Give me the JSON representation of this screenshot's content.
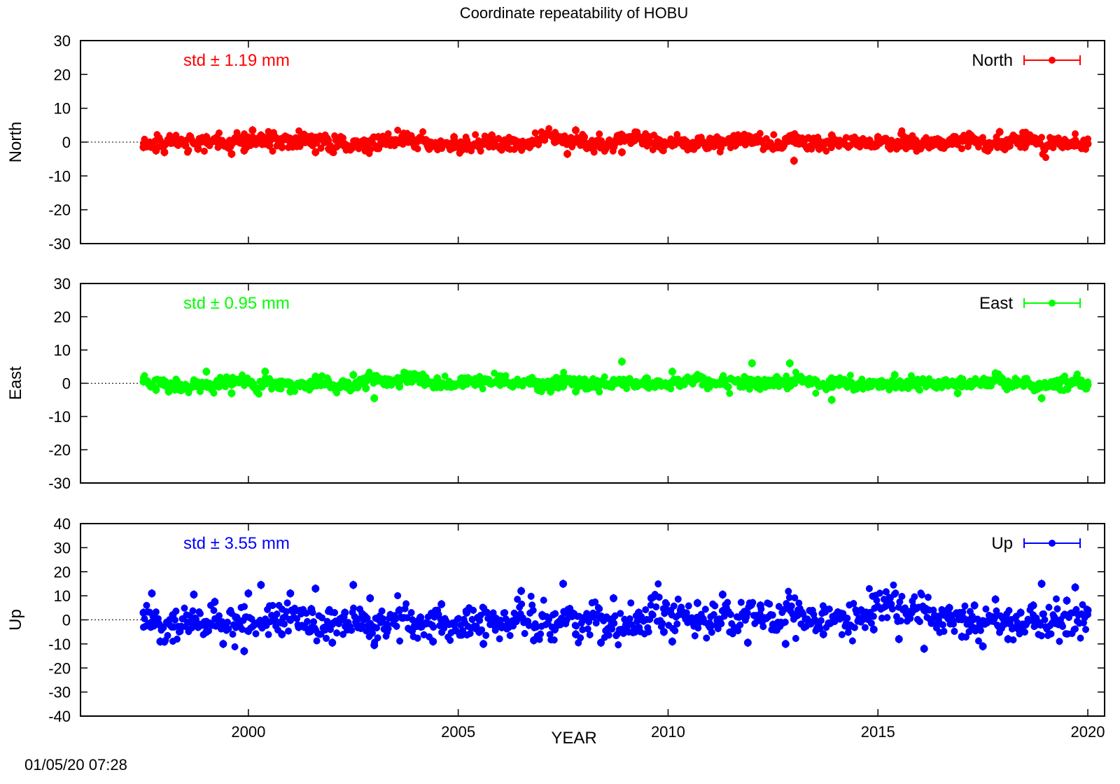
{
  "chart_data": [
    {
      "type": "scatter",
      "panel": "North",
      "title": "Coordinate repeatability of HOBU",
      "ylabel": "North",
      "xlabel": "",
      "ylim": [
        -30,
        30
      ],
      "yticks": [
        30,
        20,
        10,
        0,
        -10,
        -20,
        -30
      ],
      "xlim": [
        1996,
        2020.4
      ],
      "std_label": "std ± 1.19 mm",
      "legend": "North",
      "legend_position": "top-right",
      "color": "#ff0000",
      "zero_line": "dotted",
      "x_start": 1997.5,
      "x_end": 2020.0,
      "std": 1.19,
      "series": [
        {
          "name": "North",
          "points": [
            [
              1997.5,
              -1.5
            ],
            [
              1997.8,
              -2.5
            ],
            [
              1998.0,
              -3.0
            ],
            [
              1998.2,
              0.5
            ],
            [
              1998.5,
              -1.0
            ],
            [
              1998.8,
              -2.0
            ],
            [
              1999.0,
              1.5
            ],
            [
              1999.3,
              -1.0
            ],
            [
              1999.6,
              -3.5
            ],
            [
              1999.9,
              -2.5
            ],
            [
              2000.1,
              3.5
            ],
            [
              2000.3,
              2.0
            ],
            [
              2000.5,
              -1.0
            ],
            [
              2000.8,
              -1.5
            ],
            [
              2001.0,
              1.0
            ],
            [
              2001.3,
              0.0
            ],
            [
              2001.6,
              -3.0
            ],
            [
              2001.9,
              0.5
            ],
            [
              2002.2,
              1.5
            ],
            [
              2002.5,
              -1.0
            ],
            [
              2002.8,
              -0.5
            ],
            [
              2003.1,
              1.5
            ],
            [
              2003.4,
              0.0
            ],
            [
              2003.7,
              2.5
            ],
            [
              2004.0,
              0.5
            ],
            [
              2004.3,
              0.0
            ],
            [
              2004.6,
              -1.5
            ],
            [
              2004.9,
              1.5
            ],
            [
              2005.2,
              0.5
            ],
            [
              2005.5,
              -1.5
            ],
            [
              2005.8,
              2.0
            ],
            [
              2006.1,
              0.5
            ],
            [
              2006.4,
              -1.0
            ],
            [
              2006.7,
              -1.5
            ],
            [
              2007.0,
              1.5
            ],
            [
              2007.3,
              0.0
            ],
            [
              2007.6,
              -3.5
            ],
            [
              2007.8,
              3.5
            ],
            [
              2008.0,
              1.5
            ],
            [
              2008.3,
              -1.0
            ],
            [
              2008.6,
              0.5
            ],
            [
              2008.9,
              -3.0
            ],
            [
              2009.2,
              0.5
            ],
            [
              2009.5,
              -1.0
            ],
            [
              2009.8,
              0.5
            ],
            [
              2010.1,
              -1.0
            ],
            [
              2010.4,
              0.0
            ],
            [
              2010.7,
              -1.0
            ],
            [
              2011.0,
              1.0
            ],
            [
              2011.3,
              0.0
            ],
            [
              2011.6,
              -1.0
            ],
            [
              2011.9,
              1.0
            ],
            [
              2012.2,
              0.5
            ],
            [
              2012.5,
              -2.0
            ],
            [
              2012.9,
              1.5
            ],
            [
              2013.0,
              -5.5
            ],
            [
              2013.3,
              -1.5
            ],
            [
              2013.6,
              -2.0
            ],
            [
              2013.9,
              2.0
            ],
            [
              2014.2,
              -0.5
            ],
            [
              2014.5,
              -0.5
            ],
            [
              2014.8,
              0.5
            ],
            [
              2015.0,
              1.5
            ],
            [
              2015.3,
              0.0
            ],
            [
              2015.6,
              0.5
            ],
            [
              2015.9,
              0.5
            ],
            [
              2016.2,
              0.5
            ],
            [
              2016.5,
              -1.5
            ],
            [
              2016.8,
              1.5
            ],
            [
              2017.1,
              0.5
            ],
            [
              2017.4,
              0.0
            ],
            [
              2017.7,
              -0.5
            ],
            [
              2017.9,
              3.0
            ],
            [
              2018.2,
              0.5
            ],
            [
              2018.5,
              -1.5
            ],
            [
              2018.8,
              0.5
            ],
            [
              2019.1,
              -0.5
            ],
            [
              2019.4,
              -1.5
            ],
            [
              2019.7,
              0.5
            ],
            [
              2020.0,
              -0.5
            ]
          ]
        }
      ]
    },
    {
      "type": "scatter",
      "panel": "East",
      "ylabel": "East",
      "xlabel": "",
      "ylim": [
        -30,
        30
      ],
      "yticks": [
        30,
        20,
        10,
        0,
        -10,
        -20,
        -30
      ],
      "xlim": [
        1996,
        2020.4
      ],
      "std_label": "std ± 0.95 mm",
      "legend": "East",
      "legend_position": "top-right",
      "color": "#00ff00",
      "zero_line": "dotted",
      "x_start": 1997.5,
      "x_end": 2020.0,
      "std": 0.95,
      "series": [
        {
          "name": "East",
          "points": [
            [
              1997.5,
              0.5
            ],
            [
              1997.8,
              -2.0
            ],
            [
              1998.1,
              -2.5
            ],
            [
              1998.4,
              -0.5
            ],
            [
              1998.7,
              0.5
            ],
            [
              1999.0,
              3.5
            ],
            [
              1999.3,
              -1.0
            ],
            [
              1999.6,
              -3.0
            ],
            [
              1999.9,
              1.0
            ],
            [
              2000.2,
              -2.5
            ],
            [
              2000.4,
              3.5
            ],
            [
              2000.7,
              -0.5
            ],
            [
              2001.0,
              -2.5
            ],
            [
              2001.3,
              0.0
            ],
            [
              2001.6,
              2.0
            ],
            [
              2001.9,
              0.5
            ],
            [
              2002.2,
              -0.5
            ],
            [
              2002.5,
              2.5
            ],
            [
              2002.8,
              -1.5
            ],
            [
              2003.0,
              -4.5
            ],
            [
              2003.3,
              -0.5
            ],
            [
              2003.6,
              -1.0
            ],
            [
              2003.9,
              0.5
            ],
            [
              2004.2,
              -0.5
            ],
            [
              2004.5,
              1.5
            ],
            [
              2004.8,
              -1.0
            ],
            [
              2005.1,
              0.5
            ],
            [
              2005.4,
              -0.5
            ],
            [
              2005.7,
              1.0
            ],
            [
              2006.0,
              -0.5
            ],
            [
              2006.3,
              -1.0
            ],
            [
              2006.6,
              0.5
            ],
            [
              2006.9,
              -2.0
            ],
            [
              2007.2,
              -2.5
            ],
            [
              2007.5,
              -1.0
            ],
            [
              2007.8,
              -2.5
            ],
            [
              2008.1,
              -1.5
            ],
            [
              2008.4,
              0.5
            ],
            [
              2008.7,
              1.0
            ],
            [
              2008.9,
              6.5
            ],
            [
              2009.2,
              -1.0
            ],
            [
              2009.5,
              1.5
            ],
            [
              2009.8,
              0.5
            ],
            [
              2010.1,
              3.5
            ],
            [
              2010.4,
              1.0
            ],
            [
              2010.7,
              2.5
            ],
            [
              2011.0,
              0.0
            ],
            [
              2011.3,
              1.5
            ],
            [
              2011.6,
              0.5
            ],
            [
              2011.9,
              1.0
            ],
            [
              2012.0,
              6.0
            ],
            [
              2012.3,
              1.0
            ],
            [
              2012.6,
              0.5
            ],
            [
              2012.9,
              6.0
            ],
            [
              2013.2,
              0.5
            ],
            [
              2013.5,
              1.0
            ],
            [
              2013.9,
              -5.0
            ],
            [
              2014.2,
              1.0
            ],
            [
              2014.5,
              -0.5
            ],
            [
              2014.8,
              0.5
            ],
            [
              2015.1,
              -1.0
            ],
            [
              2015.4,
              2.5
            ],
            [
              2015.7,
              0.5
            ],
            [
              2016.0,
              0.0
            ],
            [
              2016.3,
              -0.5
            ],
            [
              2016.6,
              0.5
            ],
            [
              2016.9,
              -3.0
            ],
            [
              2017.2,
              0.5
            ],
            [
              2017.5,
              1.0
            ],
            [
              2017.8,
              3.0
            ],
            [
              2018.1,
              0.5
            ],
            [
              2018.4,
              0.0
            ],
            [
              2018.7,
              -1.0
            ],
            [
              2018.9,
              -4.5
            ],
            [
              2019.2,
              -0.5
            ],
            [
              2019.5,
              0.5
            ],
            [
              2019.8,
              0.0
            ],
            [
              2020.0,
              -0.5
            ]
          ]
        }
      ]
    },
    {
      "type": "scatter",
      "panel": "Up",
      "ylabel": "Up",
      "xlabel": "YEAR",
      "ylim": [
        -40,
        40
      ],
      "yticks": [
        40,
        30,
        20,
        10,
        0,
        -10,
        -20,
        -30,
        -40
      ],
      "xlim": [
        1996,
        2020.4
      ],
      "xticks": [
        "2000",
        "2005",
        "2010",
        "2015",
        "2020"
      ],
      "std_label": "std ± 3.55 mm",
      "legend": "Up",
      "legend_position": "top-right",
      "color": "#0000ff",
      "zero_line": "dotted",
      "x_start": 1997.5,
      "x_end": 2020.0,
      "std": 3.55,
      "series": [
        {
          "name": "Up",
          "points": [
            [
              1997.5,
              3.0
            ],
            [
              1997.7,
              11.0
            ],
            [
              1997.9,
              -9.0
            ],
            [
              1998.2,
              2.0
            ],
            [
              1998.4,
              -3.0
            ],
            [
              1998.7,
              10.5
            ],
            [
              1999.0,
              -5.0
            ],
            [
              1999.2,
              7.5
            ],
            [
              1999.4,
              -10.0
            ],
            [
              1999.7,
              1.0
            ],
            [
              1999.9,
              -13.0
            ],
            [
              2000.0,
              11.0
            ],
            [
              2000.3,
              14.5
            ],
            [
              2000.6,
              0.0
            ],
            [
              2000.8,
              -6.0
            ],
            [
              2001.0,
              11.0
            ],
            [
              2001.2,
              -3.0
            ],
            [
              2001.5,
              4.5
            ],
            [
              2001.6,
              13.0
            ],
            [
              2001.9,
              -2.0
            ],
            [
              2002.0,
              -9.5
            ],
            [
              2002.3,
              3.0
            ],
            [
              2002.5,
              14.5
            ],
            [
              2002.7,
              -2.5
            ],
            [
              2002.9,
              9.0
            ],
            [
              2003.0,
              -10.5
            ],
            [
              2003.3,
              -2.0
            ],
            [
              2003.6,
              4.0
            ],
            [
              2003.9,
              -4.5
            ],
            [
              2004.1,
              1.0
            ],
            [
              2004.4,
              -9.0
            ],
            [
              2004.6,
              6.5
            ],
            [
              2004.9,
              -2.0
            ],
            [
              2005.2,
              3.0
            ],
            [
              2005.5,
              -5.0
            ],
            [
              2005.6,
              -10.0
            ],
            [
              2005.9,
              0.5
            ],
            [
              2006.2,
              -3.0
            ],
            [
              2006.5,
              12.0
            ],
            [
              2006.8,
              -8.5
            ],
            [
              2007.0,
              2.0
            ],
            [
              2007.3,
              -4.0
            ],
            [
              2007.5,
              15.0
            ],
            [
              2007.8,
              -6.0
            ],
            [
              2008.1,
              1.0
            ],
            [
              2008.4,
              -9.5
            ],
            [
              2008.7,
              9.0
            ],
            [
              2009.0,
              -2.0
            ],
            [
              2009.3,
              3.0
            ],
            [
              2009.6,
              9.0
            ],
            [
              2009.9,
              -5.0
            ],
            [
              2010.1,
              -9.0
            ],
            [
              2010.4,
              2.0
            ],
            [
              2010.7,
              7.0
            ],
            [
              2011.0,
              -3.0
            ],
            [
              2011.3,
              10.5
            ],
            [
              2011.6,
              -4.0
            ],
            [
              2011.9,
              -9.5
            ],
            [
              2012.2,
              6.0
            ],
            [
              2012.5,
              -2.0
            ],
            [
              2012.8,
              -10.0
            ],
            [
              2013.1,
              4.0
            ],
            [
              2013.4,
              -1.5
            ],
            [
              2013.7,
              -6.0
            ],
            [
              2014.0,
              2.0
            ],
            [
              2014.3,
              -3.0
            ],
            [
              2014.6,
              4.0
            ],
            [
              2014.9,
              -4.0
            ],
            [
              2015.2,
              6.0
            ],
            [
              2015.5,
              -8.0
            ],
            [
              2015.8,
              3.0
            ],
            [
              2016.1,
              -12.0
            ],
            [
              2016.4,
              -2.0
            ],
            [
              2016.7,
              5.0
            ],
            [
              2017.0,
              -7.0
            ],
            [
              2017.3,
              6.0
            ],
            [
              2017.5,
              -11.0
            ],
            [
              2017.8,
              8.5
            ],
            [
              2018.1,
              -8.0
            ],
            [
              2018.4,
              3.0
            ],
            [
              2018.7,
              6.0
            ],
            [
              2018.9,
              15.0
            ],
            [
              2019.2,
              1.0
            ],
            [
              2019.5,
              8.0
            ],
            [
              2019.7,
              13.5
            ],
            [
              2020.0,
              4.0
            ]
          ]
        }
      ]
    }
  ],
  "timestamp": "01/05/20 07:28"
}
